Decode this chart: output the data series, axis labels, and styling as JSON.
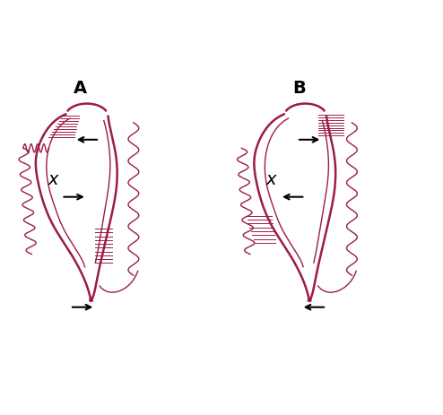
{
  "title_A": "A",
  "title_B": "B",
  "color_main": "#9B1B4B",
  "color_arrow": "#000000",
  "background": "#ffffff",
  "figsize": [
    4.94,
    4.63
  ],
  "dpi": 100
}
